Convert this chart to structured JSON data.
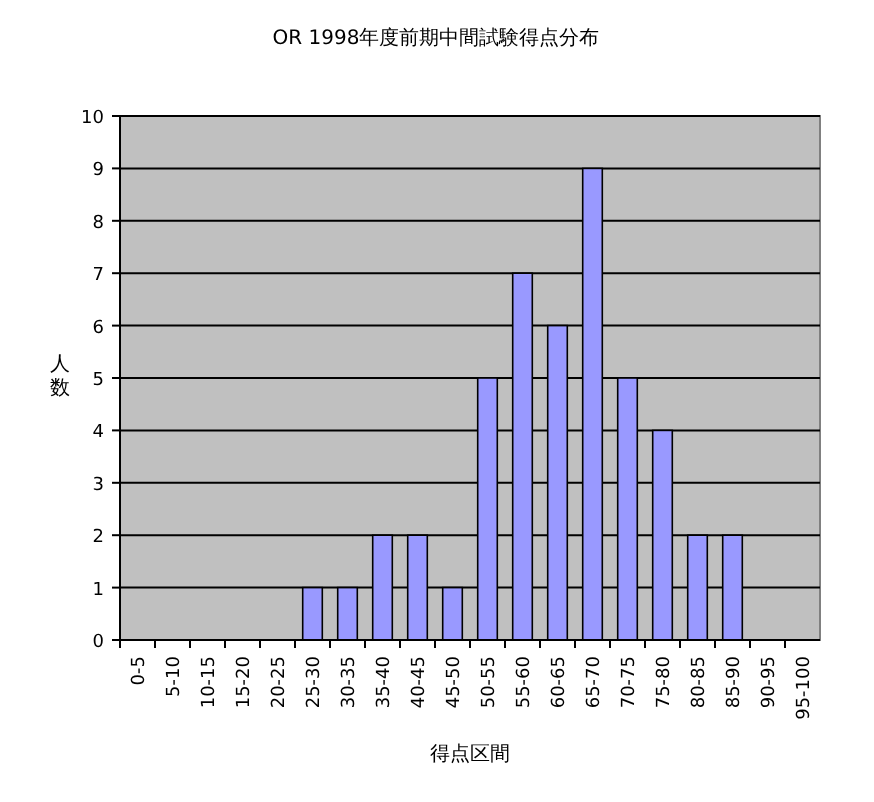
{
  "chart_data": {
    "type": "bar",
    "title": "OR 1998年度前期中間試験得点分布",
    "xlabel": "得点区間",
    "ylabel": "人数",
    "categories": [
      "0-5",
      "5-10",
      "10-15",
      "15-20",
      "20-25",
      "25-30",
      "30-35",
      "35-40",
      "40-45",
      "45-50",
      "50-55",
      "55-60",
      "60-65",
      "65-70",
      "70-75",
      "75-80",
      "80-85",
      "85-90",
      "90-95",
      "95-100"
    ],
    "values": [
      0,
      0,
      0,
      0,
      0,
      1,
      1,
      2,
      2,
      1,
      5,
      7,
      6,
      9,
      5,
      4,
      2,
      2,
      0,
      0
    ],
    "color": "#9999ff",
    "ylim": [
      0,
      10
    ],
    "yticks": [
      0,
      1,
      2,
      3,
      4,
      5,
      6,
      7,
      8,
      9,
      10
    ],
    "grid": "y"
  }
}
